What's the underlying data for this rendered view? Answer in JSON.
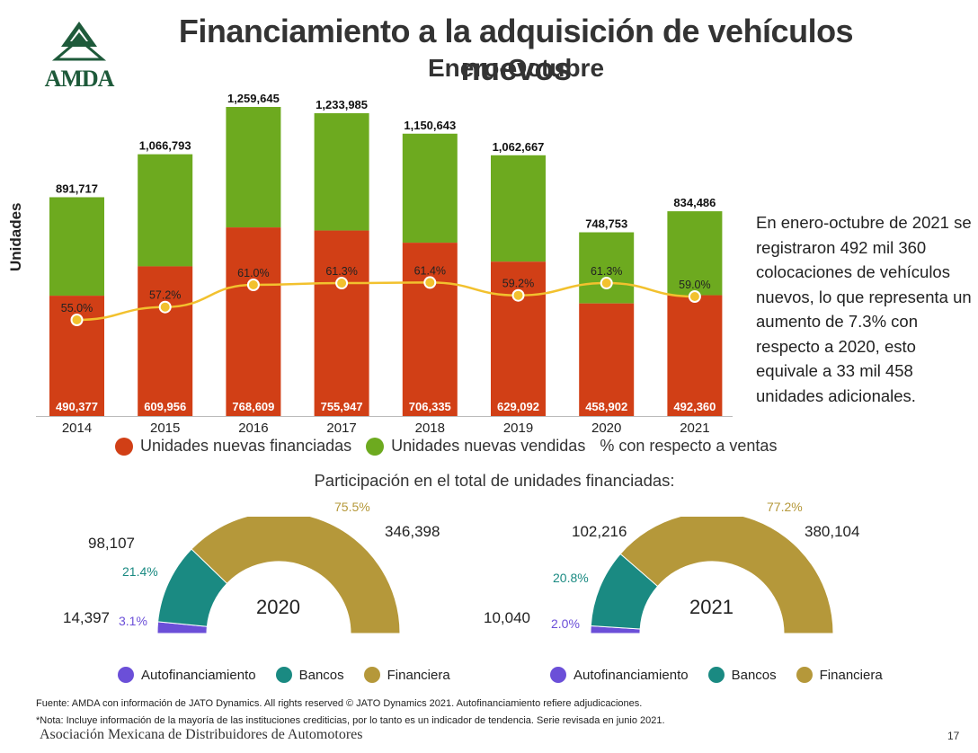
{
  "header": {
    "title": "Financiamiento a la adquisición de vehículos nuevos",
    "subtitle": "Enero-Octubre",
    "logo_text": "AMDA"
  },
  "colors": {
    "financed": "#D13F16",
    "sold": "#6DAA1F",
    "line": "#F2C12E",
    "autofin": "#6B4FD8",
    "bancos": "#1A8A82",
    "financiera": "#B5983A",
    "logo": "#1E5A3A"
  },
  "chart_data": [
    {
      "type": "bar",
      "subtype": "stacked_with_line",
      "ylabel": "Unidades",
      "categories": [
        "2014",
        "2015",
        "2016",
        "2017",
        "2018",
        "2019",
        "2020",
        "2021"
      ],
      "series": [
        {
          "name": "Unidades nuevas financiadas",
          "values": [
            490377,
            609956,
            768609,
            755947,
            706335,
            629092,
            458902,
            492360
          ],
          "labels": [
            "490,377",
            "609,956",
            "768,609",
            "755,947",
            "706,335",
            "629,092",
            "458,902",
            "492,360"
          ]
        },
        {
          "name": "Unidades nuevas vendidas",
          "values": [
            891717,
            1066793,
            1259645,
            1233985,
            1150643,
            1062667,
            748753,
            834486
          ],
          "labels": [
            "891,717",
            "1,066,793",
            "1,259,645",
            "1,233,985",
            "1,150,643",
            "1,062,667",
            "748,753",
            "834,486"
          ]
        },
        {
          "name": "% con respecto a ventas",
          "values": [
            55.0,
            57.2,
            61.0,
            61.3,
            61.4,
            59.2,
            61.3,
            59.0
          ],
          "labels": [
            "55.0%",
            "57.2%",
            "61.0%",
            "61.3%",
            "61.4%",
            "59.2%",
            "61.3%",
            "59.0%"
          ]
        }
      ],
      "ylim": [
        0,
        1300000
      ]
    },
    {
      "type": "pie",
      "subtype": "half_donut",
      "title": "2020",
      "slices": [
        {
          "name": "Autofinanciamiento",
          "value": 14397,
          "value_label": "14,397",
          "pct": 3.1,
          "pct_label": "3.1%"
        },
        {
          "name": "Bancos",
          "value": 98107,
          "value_label": "98,107",
          "pct": 21.4,
          "pct_label": "21.4%"
        },
        {
          "name": "Financiera",
          "value": 346398,
          "value_label": "346,398",
          "pct": 75.5,
          "pct_label": "75.5%"
        }
      ]
    },
    {
      "type": "pie",
      "subtype": "half_donut",
      "title": "2021",
      "slices": [
        {
          "name": "Autofinanciamiento",
          "value": 10040,
          "value_label": "10,040",
          "pct": 2.0,
          "pct_label": "2.0%"
        },
        {
          "name": "Bancos",
          "value": 102216,
          "value_label": "102,216",
          "pct": 20.8,
          "pct_label": "20.8%"
        },
        {
          "name": "Financiera",
          "value": 380104,
          "value_label": "380,104",
          "pct": 77.2,
          "pct_label": "77.2%"
        }
      ]
    }
  ],
  "legend": {
    "financed": "Unidades nuevas financiadas",
    "sold": "Unidades nuevas vendidas",
    "pct": "% con respecto a ventas"
  },
  "side_text": "En enero-octubre de 2021 se registraron 492 mil 360 colocaciones de vehículos nuevos, lo que representa un aumento de 7.3% con respecto a 2020, esto equivale a 33 mil 458 unidades adicionales.",
  "participation_title": "Participación en el total de unidades financiadas:",
  "donut_legend": {
    "autofin": "Autofinanciamiento",
    "bancos": "Bancos",
    "financiera": "Financiera"
  },
  "footer": {
    "source": "Fuente: AMDA con información de JATO Dynamics. All rights reserved © JATO Dynamics 2021. Autofinanciamiento refiere adjudicaciones.",
    "note": "*Nota: Incluye información de la mayoría de las instituciones crediticias, por lo tanto es un indicador de tendencia. Serie revisada en junio 2021.",
    "org": "Asociación Mexicana de Distribuidores de Automotores",
    "page": "17"
  }
}
